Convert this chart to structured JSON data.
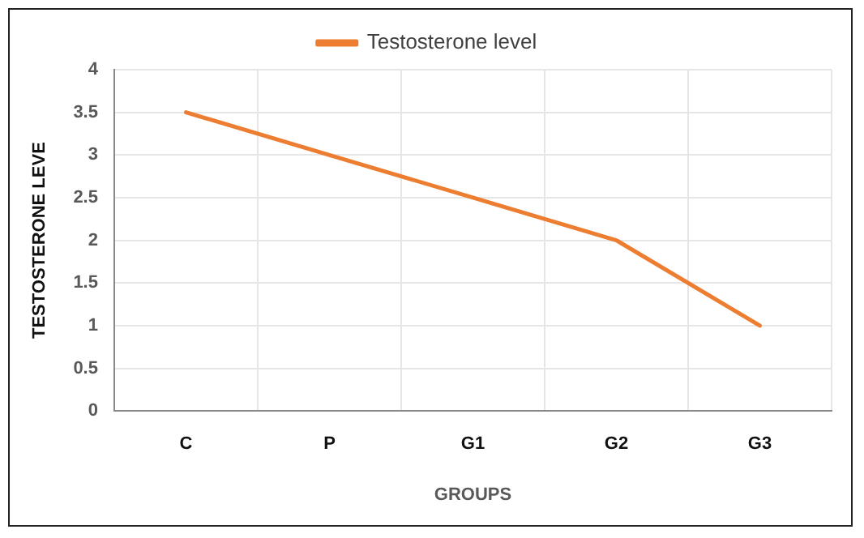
{
  "chart_data": {
    "type": "line",
    "xlabel": "GROUPS",
    "ylabel": "TESTOSTERONE LEVE",
    "categories": [
      "C",
      "P",
      "G1",
      "G2",
      "G3"
    ],
    "series": [
      {
        "name": "Testosterone level",
        "color": "#ed7d31",
        "values": [
          3.5,
          3.0,
          2.5,
          2.0,
          1.0
        ]
      }
    ],
    "ylim": [
      0,
      4
    ],
    "yticks": [
      0,
      0.5,
      1,
      1.5,
      2,
      2.5,
      3,
      3.5,
      4
    ],
    "grid": true,
    "legend": "top",
    "marker": "none",
    "line_style": "solid"
  }
}
